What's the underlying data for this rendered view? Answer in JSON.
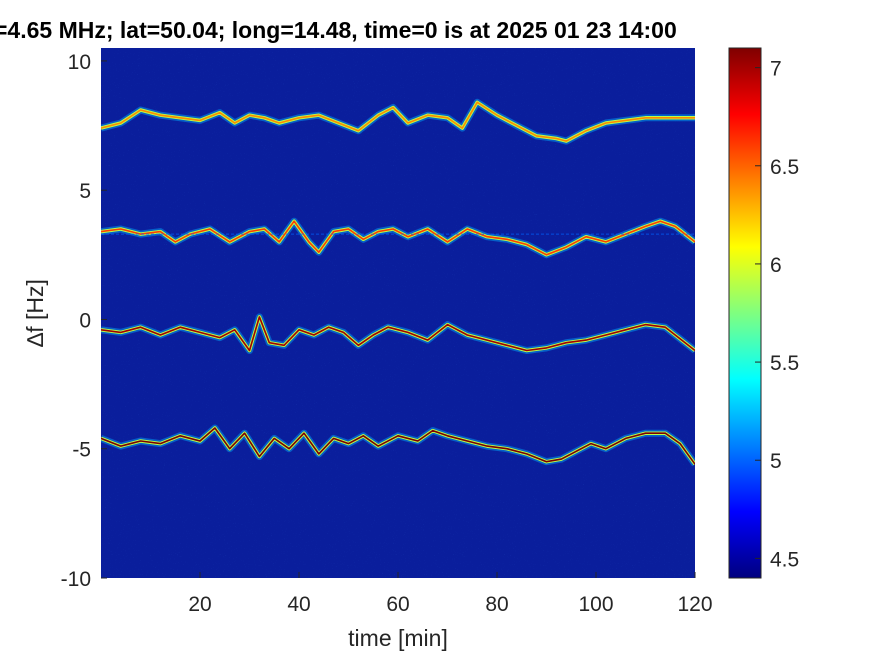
{
  "chart_data": {
    "type": "heatmap",
    "title": "=4.65 MHz;  lat=50.04; long=14.48, time=0 is at 2025 01 23 14:00",
    "xlabel": "time [min]",
    "ylabel": "∆f [Hz]",
    "xlim": [
      0,
      120
    ],
    "ylim": [
      -10,
      10.5
    ],
    "x_ticks": [
      20,
      40,
      60,
      80,
      100,
      120
    ],
    "y_ticks": [
      -10,
      -5,
      0,
      5,
      10
    ],
    "colorbar": {
      "colormap": "jet",
      "range": [
        4.4,
        7.1
      ],
      "ticks": [
        4.5,
        5,
        5.5,
        6,
        6.5,
        7
      ]
    },
    "background_color": "#0a1e9c",
    "traces": [
      {
        "name": "",
        "points": [
          [
            0,
            7.4
          ],
          [
            4,
            7.6
          ],
          [
            8,
            8.1
          ],
          [
            12,
            7.9
          ],
          [
            16,
            7.8
          ],
          [
            20,
            7.7
          ],
          [
            24,
            8.0
          ],
          [
            27,
            7.6
          ],
          [
            30,
            7.9
          ],
          [
            33,
            7.8
          ],
          [
            36,
            7.6
          ],
          [
            40,
            7.8
          ],
          [
            44,
            7.9
          ],
          [
            48,
            7.6
          ],
          [
            52,
            7.3
          ],
          [
            56,
            7.9
          ],
          [
            59,
            8.2
          ],
          [
            62,
            7.6
          ],
          [
            66,
            7.9
          ],
          [
            70,
            7.8
          ],
          [
            73,
            7.4
          ],
          [
            76,
            8.4
          ],
          [
            80,
            7.9
          ],
          [
            84,
            7.5
          ],
          [
            88,
            7.1
          ],
          [
            92,
            7.0
          ],
          [
            94,
            6.9
          ],
          [
            98,
            7.3
          ],
          [
            102,
            7.6
          ],
          [
            106,
            7.7
          ],
          [
            110,
            7.8
          ],
          [
            114,
            7.8
          ],
          [
            118,
            7.8
          ],
          [
            120,
            7.8
          ]
        ],
        "peak": 6.4
      },
      {
        "name": "",
        "points": [
          [
            0,
            3.4
          ],
          [
            4,
            3.5
          ],
          [
            8,
            3.3
          ],
          [
            12,
            3.4
          ],
          [
            15,
            3.0
          ],
          [
            18,
            3.3
          ],
          [
            22,
            3.5
          ],
          [
            26,
            3.0
          ],
          [
            30,
            3.4
          ],
          [
            33,
            3.5
          ],
          [
            36,
            3.0
          ],
          [
            39,
            3.8
          ],
          [
            42,
            3.0
          ],
          [
            44,
            2.6
          ],
          [
            47,
            3.4
          ],
          [
            50,
            3.5
          ],
          [
            53,
            3.1
          ],
          [
            56,
            3.4
          ],
          [
            59,
            3.5
          ],
          [
            62,
            3.2
          ],
          [
            66,
            3.5
          ],
          [
            70,
            3.0
          ],
          [
            74,
            3.5
          ],
          [
            78,
            3.2
          ],
          [
            82,
            3.1
          ],
          [
            86,
            2.9
          ],
          [
            90,
            2.5
          ],
          [
            94,
            2.8
          ],
          [
            98,
            3.2
          ],
          [
            102,
            3.0
          ],
          [
            106,
            3.3
          ],
          [
            110,
            3.6
          ],
          [
            113,
            3.8
          ],
          [
            116,
            3.6
          ],
          [
            120,
            3.0
          ]
        ],
        "peak": 6.6
      },
      {
        "name": "",
        "points": [
          [
            0,
            -0.4
          ],
          [
            4,
            -0.5
          ],
          [
            8,
            -0.3
          ],
          [
            12,
            -0.6
          ],
          [
            16,
            -0.3
          ],
          [
            20,
            -0.5
          ],
          [
            24,
            -0.7
          ],
          [
            27,
            -0.4
          ],
          [
            30,
            -1.2
          ],
          [
            32,
            0.1
          ],
          [
            34,
            -0.9
          ],
          [
            37,
            -1.0
          ],
          [
            40,
            -0.4
          ],
          [
            43,
            -0.6
          ],
          [
            46,
            -0.3
          ],
          [
            49,
            -0.5
          ],
          [
            52,
            -1.0
          ],
          [
            55,
            -0.6
          ],
          [
            58,
            -0.3
          ],
          [
            62,
            -0.5
          ],
          [
            66,
            -0.8
          ],
          [
            70,
            -0.2
          ],
          [
            74,
            -0.6
          ],
          [
            78,
            -0.8
          ],
          [
            82,
            -1.0
          ],
          [
            86,
            -1.2
          ],
          [
            90,
            -1.1
          ],
          [
            94,
            -0.9
          ],
          [
            98,
            -0.8
          ],
          [
            102,
            -0.6
          ],
          [
            106,
            -0.4
          ],
          [
            110,
            -0.2
          ],
          [
            114,
            -0.3
          ],
          [
            118,
            -0.9
          ],
          [
            120,
            -1.2
          ]
        ],
        "peak": 7.0
      },
      {
        "name": "",
        "points": [
          [
            0,
            -4.6
          ],
          [
            4,
            -4.9
          ],
          [
            8,
            -4.7
          ],
          [
            12,
            -4.8
          ],
          [
            16,
            -4.5
          ],
          [
            20,
            -4.7
          ],
          [
            23,
            -4.2
          ],
          [
            26,
            -5.0
          ],
          [
            29,
            -4.4
          ],
          [
            32,
            -5.3
          ],
          [
            35,
            -4.6
          ],
          [
            38,
            -5.0
          ],
          [
            41,
            -4.4
          ],
          [
            44,
            -5.2
          ],
          [
            47,
            -4.6
          ],
          [
            50,
            -4.8
          ],
          [
            53,
            -4.5
          ],
          [
            56,
            -4.9
          ],
          [
            60,
            -4.5
          ],
          [
            64,
            -4.7
          ],
          [
            67,
            -4.3
          ],
          [
            70,
            -4.5
          ],
          [
            74,
            -4.7
          ],
          [
            78,
            -4.9
          ],
          [
            82,
            -5.0
          ],
          [
            86,
            -5.2
          ],
          [
            90,
            -5.5
          ],
          [
            93,
            -5.4
          ],
          [
            96,
            -5.1
          ],
          [
            99,
            -4.8
          ],
          [
            102,
            -5.0
          ],
          [
            106,
            -4.6
          ],
          [
            110,
            -4.4
          ],
          [
            114,
            -4.4
          ],
          [
            117,
            -4.8
          ],
          [
            120,
            -5.6
          ]
        ],
        "peak": 7.1
      }
    ],
    "reference_lines": [
      3.3
    ]
  }
}
